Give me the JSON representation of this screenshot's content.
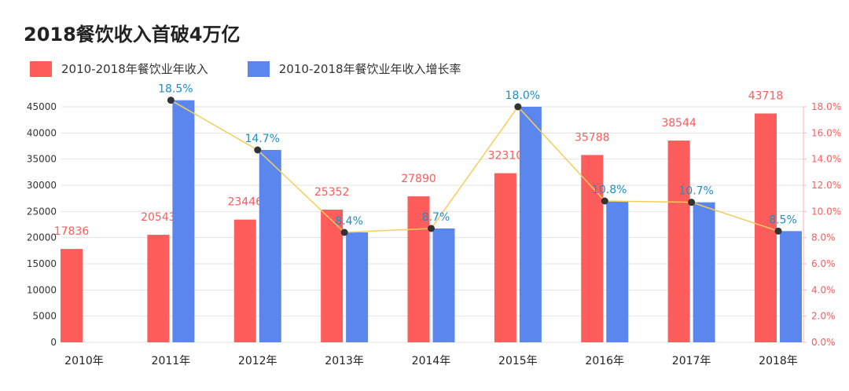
{
  "title": "2018餐饮收入首破4万亿",
  "colors": {
    "revenue": "#ff5c5c",
    "growth": "#5b86ee",
    "line": "#f5cd5a",
    "dot": "#333333",
    "grid": "#e3e3e3"
  },
  "chart_data": {
    "type": "bar",
    "categories": [
      "2010年",
      "2011年",
      "2012年",
      "2013年",
      "2014年",
      "2015年",
      "2016年",
      "2017年",
      "2018年"
    ],
    "series": [
      {
        "name": "2010-2018年餐饮业年收入",
        "axis": "left",
        "values": [
          17836,
          20543,
          23446,
          25352,
          27890,
          32310,
          35788,
          38544,
          43718
        ]
      },
      {
        "name": "2010-2018年餐饮业年收入增长率",
        "axis": "right",
        "values": [
          null,
          18.5,
          14.7,
          8.4,
          8.7,
          18.0,
          10.8,
          10.7,
          8.5
        ],
        "labels": [
          "",
          "18.5%",
          "14.7%",
          "8.4%",
          "8.7%",
          "18.0%",
          "10.8%",
          "10.7%",
          "8.5%"
        ]
      }
    ],
    "revenue_labels": [
      "17836",
      "20543",
      "23446",
      "25352",
      "27890",
      "32310",
      "35788",
      "38544",
      "43718"
    ],
    "yticks_left": [
      "0",
      "5000",
      "10000",
      "15000",
      "20000",
      "25000",
      "30000",
      "35000",
      "40000",
      "45000"
    ],
    "yticks_right": [
      "0.0%",
      "2.0%",
      "4.0%",
      "6.0%",
      "8.0%",
      "10.0%",
      "12.0%",
      "14.0%",
      "16.0%",
      "18.0%"
    ],
    "ylim_left": [
      0,
      45000
    ],
    "ylim_right": [
      0,
      18
    ],
    "legend_position": "top-left",
    "grid": true
  }
}
